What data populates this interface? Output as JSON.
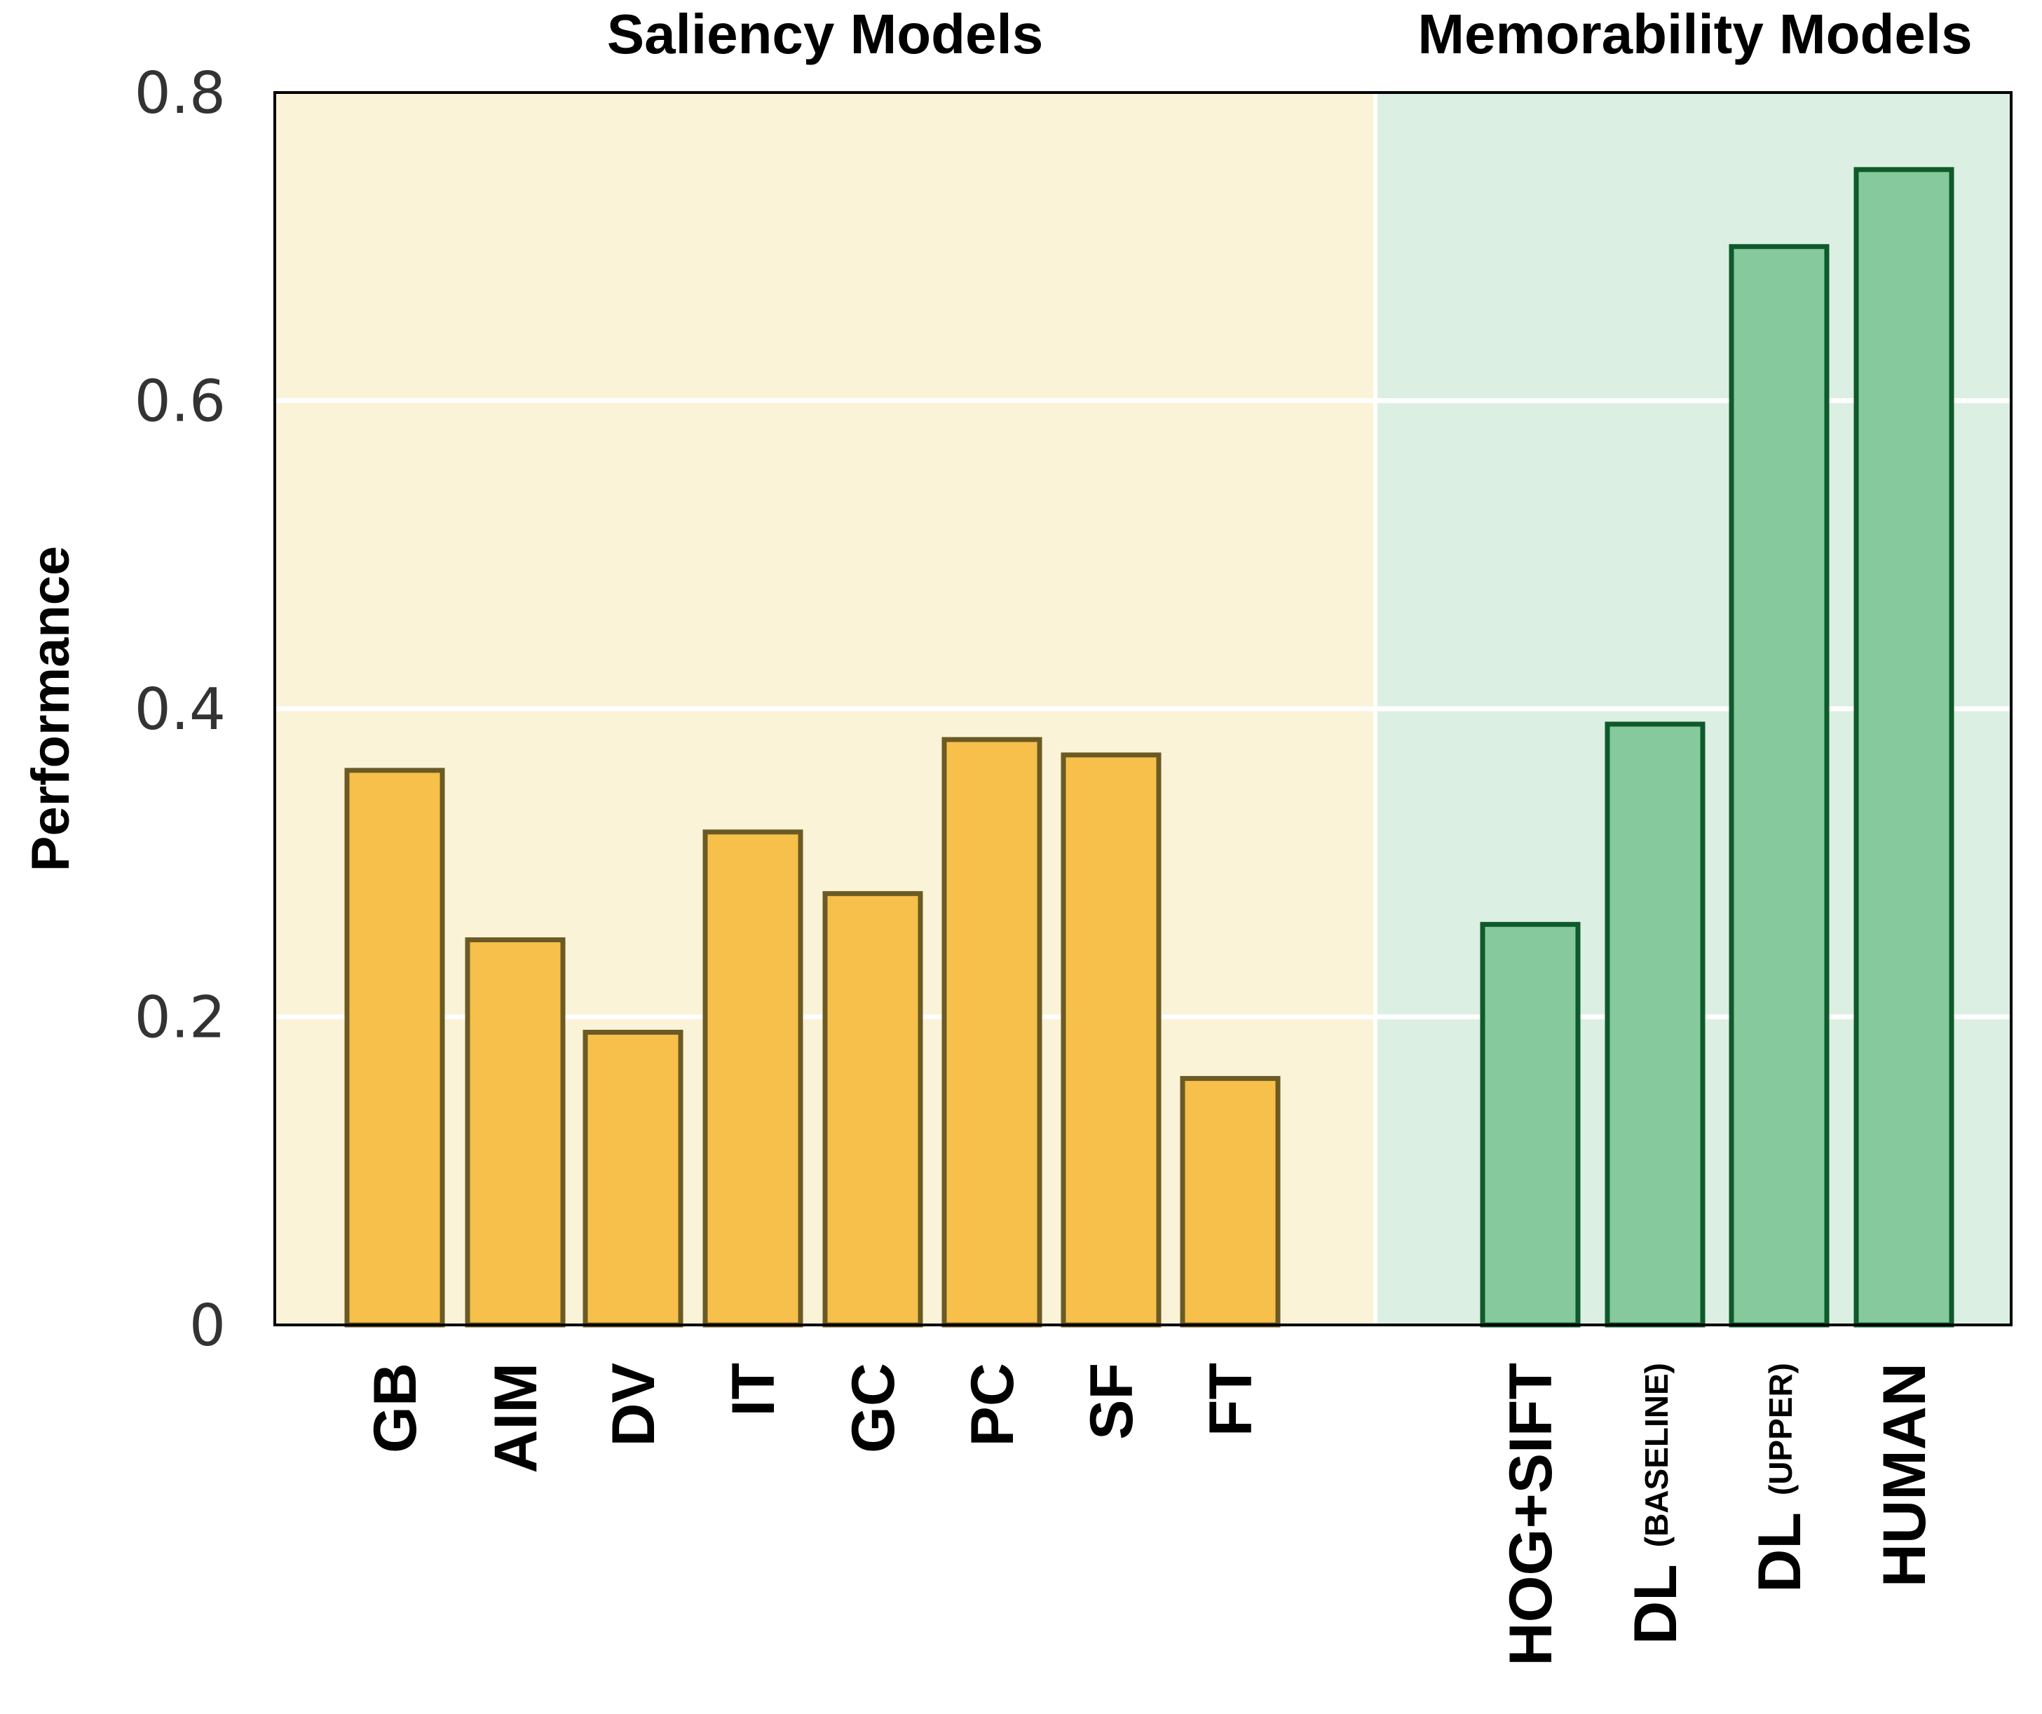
{
  "chart_data": {
    "type": "bar",
    "title": "",
    "xlabel": "",
    "ylabel": "Performance",
    "ylim": [
      0,
      0.8
    ],
    "yticks": [
      "0",
      "0.2",
      "0.4",
      "0.6",
      "0.8"
    ],
    "grid": true,
    "groups": [
      {
        "name": "Saliency Models",
        "background": "#faf3d7",
        "bar_fill": "#f6c04b",
        "bar_stroke": "#6b5a24",
        "categories": [
          {
            "label": "GB",
            "sub": ""
          },
          {
            "label": "AIM",
            "sub": ""
          },
          {
            "label": "DV",
            "sub": ""
          },
          {
            "label": "IT",
            "sub": ""
          },
          {
            "label": "GC",
            "sub": ""
          },
          {
            "label": "PC",
            "sub": ""
          },
          {
            "label": "SF",
            "sub": ""
          },
          {
            "label": "FT",
            "sub": ""
          }
        ],
        "values": [
          0.36,
          0.25,
          0.19,
          0.32,
          0.28,
          0.38,
          0.37,
          0.16
        ]
      },
      {
        "name": "Memorability Models",
        "background": "#dcefe3",
        "bar_fill": "#86c99c",
        "bar_stroke": "#0f5a2a",
        "categories": [
          {
            "label": "HOG+SIFT",
            "sub": ""
          },
          {
            "label": "DL",
            "sub": "(BASELINE)"
          },
          {
            "label": "DL",
            "sub": "(UPPER)"
          },
          {
            "label": "HUMAN",
            "sub": ""
          }
        ],
        "values": [
          0.26,
          0.39,
          0.7,
          0.75
        ]
      }
    ]
  }
}
